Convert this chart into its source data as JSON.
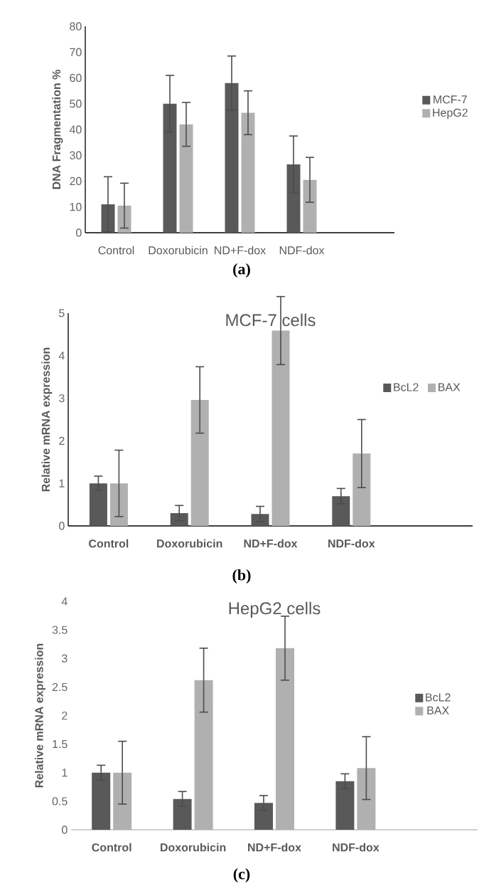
{
  "chart_data": [
    {
      "type": "bar",
      "ylabel": "DNA Fragmentation %",
      "categories": [
        "Control",
        "Doxorubicin",
        "ND+F-dox",
        "NDF-dox"
      ],
      "series": [
        {
          "name": "MCF-7",
          "color": "#595959",
          "values": [
            11,
            50,
            58,
            26.5
          ],
          "errors": [
            10.7,
            11,
            10.5,
            11
          ]
        },
        {
          "name": "HepG2",
          "color": "#b0b0b0",
          "values": [
            10.5,
            42,
            46.5,
            20.5
          ],
          "errors": [
            8.7,
            8.5,
            8.5,
            8.7
          ]
        }
      ],
      "ylim": [
        0,
        80
      ],
      "yticks": [
        0,
        10,
        20,
        30,
        40,
        50,
        60,
        70,
        80
      ],
      "legend": "right",
      "grid": false,
      "annotations": [
        "(a)"
      ]
    },
    {
      "type": "bar",
      "title": "MCF-7 cells",
      "ylabel": "Relative mRNA expression",
      "categories": [
        "Control",
        "Doxorubicin",
        "ND+F-dox",
        "NDF-dox"
      ],
      "series": [
        {
          "name": "BcL2",
          "color": "#595959",
          "values": [
            1.0,
            0.3,
            0.28,
            0.7
          ],
          "errors": [
            0.17,
            0.18,
            0.18,
            0.18
          ]
        },
        {
          "name": "BAX",
          "color": "#b0b0b0",
          "values": [
            1.0,
            2.96,
            4.59,
            1.7
          ],
          "errors": [
            0.78,
            0.78,
            0.8,
            0.8
          ]
        }
      ],
      "ylim": [
        0,
        5
      ],
      "yticks": [
        0,
        1,
        2,
        3,
        4,
        5
      ],
      "legend": "right",
      "grid": false,
      "annotations": [
        "(b)"
      ]
    },
    {
      "type": "bar",
      "title": "HepG2 cells",
      "ylabel": "Relative mRNA expression",
      "categories": [
        "Control",
        "Doxorubicin",
        "ND+F-dox",
        "NDF-dox"
      ],
      "series": [
        {
          "name": "BcL2",
          "color": "#595959",
          "values": [
            1.0,
            0.54,
            0.47,
            0.85
          ],
          "errors": [
            0.13,
            0.13,
            0.13,
            0.13
          ]
        },
        {
          "name": "BAX",
          "color": "#b0b0b0",
          "values": [
            1.0,
            2.62,
            3.18,
            1.08
          ],
          "errors": [
            0.55,
            0.56,
            0.56,
            0.55
          ]
        }
      ],
      "ylim": [
        0,
        4
      ],
      "yticks": [
        0,
        0.5,
        1,
        1.5,
        2,
        2.5,
        3,
        3.5,
        4
      ],
      "legend": "right",
      "grid": false,
      "annotations": [
        "(c)"
      ]
    }
  ]
}
